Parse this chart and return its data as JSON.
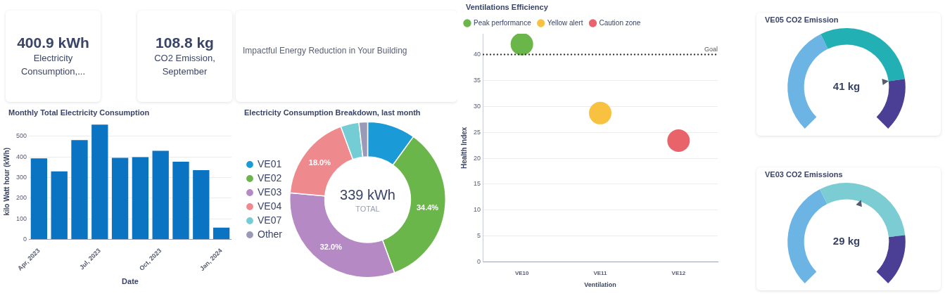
{
  "chart_data": [
    {
      "type": "other",
      "title": "400.9 kWh",
      "annotations": [
        "Electricity Consumption,..."
      ]
    },
    {
      "type": "other",
      "title": "108.8 kg",
      "annotations": [
        "CO2 Emission, September"
      ]
    },
    {
      "type": "other",
      "annotations": [
        "Impactful Energy Reduction in Your Building"
      ]
    },
    {
      "type": "bar",
      "title": "Monthly Total Electricity Consumption",
      "xlabel": "Date",
      "ylabel": "kilo Watt hour (kWh)",
      "categories": [
        "Apr, 2023",
        null,
        null,
        "Jul, 2023",
        null,
        null,
        "Oct, 2023",
        null,
        null,
        "Jan, 2024"
      ],
      "values": [
        393,
        330,
        482,
        557,
        396,
        399,
        430,
        377,
        336,
        57
      ],
      "color": "#0a73c2",
      "ylim": [
        0,
        560
      ],
      "yticks": [
        0,
        100,
        200,
        300,
        400,
        500
      ],
      "grid": "y"
    },
    {
      "type": "donut",
      "title": "Electricity Consumption Breakdown, last month",
      "categories": [
        "VE01",
        "VE02",
        "VE03",
        "VE04",
        "VE07",
        "Other"
      ],
      "values": [
        10.0,
        34.4,
        32.0,
        18.0,
        3.8,
        1.8
      ],
      "colors": [
        "#1a9ad6",
        "#6ab64a",
        "#b589c4",
        "#ee8a8e",
        "#74ccd4",
        "#9a9ab8"
      ],
      "value_labels": [
        null,
        "34.4%",
        "32.0%",
        "18.0%",
        null,
        null
      ],
      "annotations": [
        "339 kWh",
        "TOTAL"
      ],
      "legend": "left"
    },
    {
      "type": "scatter",
      "title": "Ventilations Efficiency",
      "xlabel": "Ventilation",
      "ylabel": "Health Index",
      "categories": [
        "VE10",
        "VE11",
        "VE12"
      ],
      "series": [
        {
          "name": "Peak performance",
          "color": "#6ab64a",
          "values": [
            42,
            null,
            null
          ]
        },
        {
          "name": "Yellow alert",
          "color": "#f8c240",
          "values": [
            null,
            28.7,
            null
          ]
        },
        {
          "name": "Caution zone",
          "color": "#e8646a",
          "values": [
            null,
            null,
            23.4
          ]
        }
      ],
      "ylim": [
        0,
        44
      ],
      "yticks": [
        0,
        5,
        10,
        15,
        20,
        25,
        30,
        35,
        40
      ],
      "grid": "y",
      "marker": "circle",
      "legend": "top left",
      "ref_lines": [
        {
          "axis": "y",
          "value": 40,
          "label": "Goal",
          "color": "#333333",
          "line_style": "dotted"
        }
      ]
    },
    {
      "type": "donut",
      "title": "VE05 CO2 Emission",
      "categories": [
        null,
        null,
        null
      ],
      "values": [
        40.4,
        40.0,
        19.6
      ],
      "colors": [
        "#6cb4e4",
        "#22b0b4",
        "#4a3f94"
      ],
      "annotations": [
        "41 kg"
      ]
    },
    {
      "type": "donut",
      "title": "VE03 CO2 Emissions",
      "categories": [
        null,
        null,
        null
      ],
      "values": [
        40.0,
        41.0,
        19.0
      ],
      "colors": [
        "#6cb4e4",
        "#7cccd4",
        "#4a3f94"
      ],
      "annotations": [
        "29 kg"
      ]
    }
  ]
}
